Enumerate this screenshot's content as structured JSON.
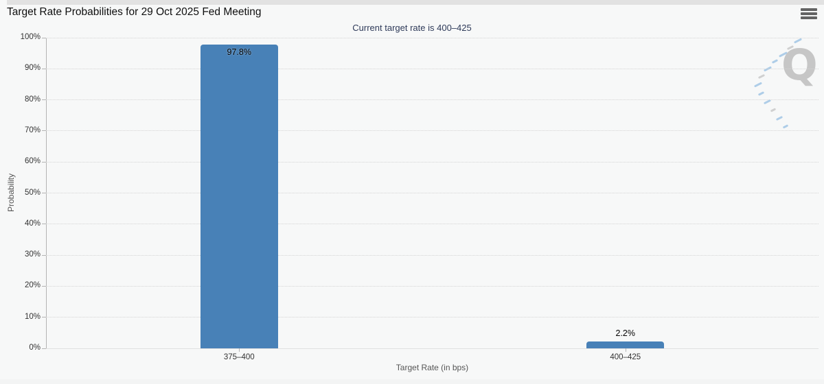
{
  "header": {
    "title": "Target Rate Probabilities for 29 Oct 2025 Fed Meeting",
    "subtitle": "Current target rate is 400–425",
    "subtitle_color": "#2e3a59"
  },
  "toolbar": {
    "menu_icon": "hamburger-icon"
  },
  "watermark": {
    "letter": "Q"
  },
  "chart_data": {
    "type": "bar",
    "title": "Target Rate Probabilities for 29 Oct 2025 Fed Meeting",
    "subtitle": "Current target rate is 400–425",
    "categories": [
      "375–400",
      "400–425"
    ],
    "values": [
      97.8,
      2.2
    ],
    "value_labels": [
      "97.8%",
      "2.2%"
    ],
    "xlabel": "Target Rate (in bps)",
    "ylabel": "Probability",
    "ylim": [
      0,
      100
    ],
    "yticks": [
      "0%",
      "10%",
      "20%",
      "30%",
      "40%",
      "50%",
      "60%",
      "70%",
      "80%",
      "90%",
      "100%"
    ],
    "grid": "horizontal-dotted",
    "legend": "none",
    "bar_color": "#4881b7"
  }
}
